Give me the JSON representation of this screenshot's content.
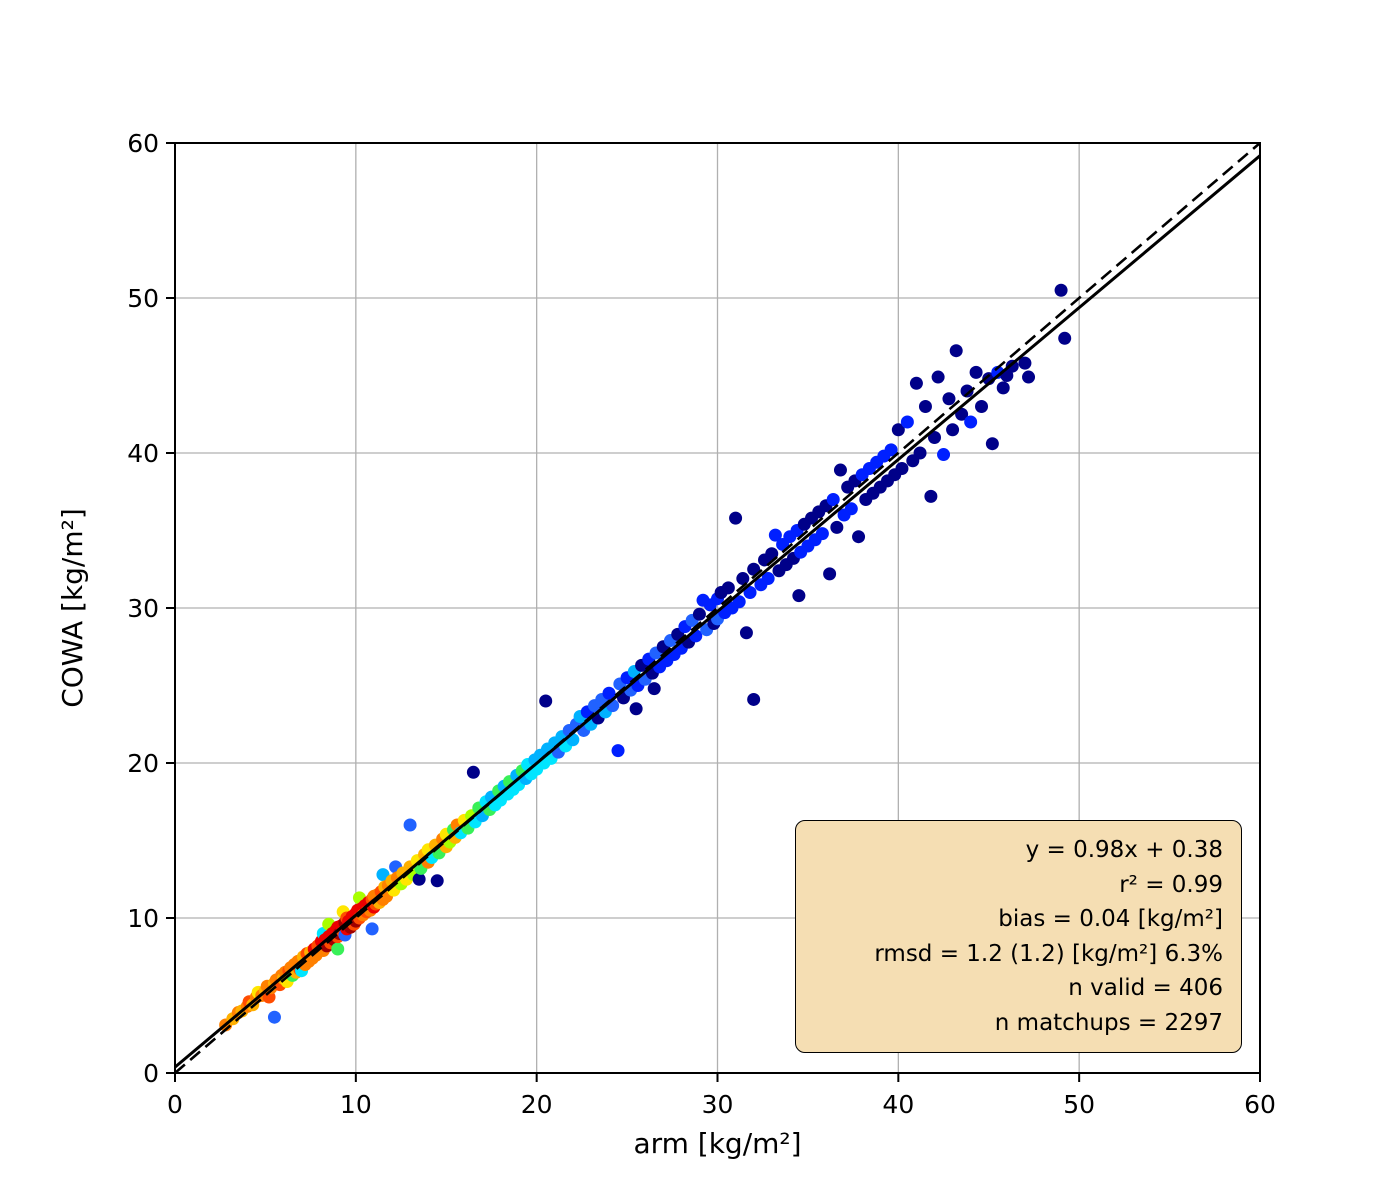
{
  "figure": {
    "background": "#ffffff",
    "stats_box": {
      "bg_color": "#f5deb3",
      "border_color": "#000000",
      "lines": [
        "y = 0.98x + 0.38",
        "r² = 0.99",
        "bias = 0.04 [kg/m²]",
        "rmsd = 1.2 (1.2) [kg/m²] 6.3%",
        "n valid = 406",
        "n matchups = 2297"
      ]
    }
  },
  "chart_data": {
    "type": "scatter",
    "title": "",
    "xlabel": "arm [kg/m²]",
    "ylabel": "COWA [kg/m²]",
    "xlim": [
      0,
      60
    ],
    "ylim": [
      0,
      60
    ],
    "xticks": [
      0,
      10,
      20,
      30,
      40,
      50,
      60
    ],
    "yticks": [
      0,
      10,
      20,
      30,
      40,
      50,
      60
    ],
    "grid": true,
    "grid_color": "#b0b0b0",
    "axis_color": "#000000",
    "identity_line": {
      "x0": 0,
      "y0": 0,
      "x1": 60,
      "y1": 60,
      "style": "dashed",
      "color": "#000000"
    },
    "fit_line": {
      "slope": 0.98,
      "intercept": 0.38,
      "style": "solid",
      "color": "#000000"
    },
    "marker_radius": 6.5,
    "palette": [
      "#000089",
      "#0020ff",
      "#2162ff",
      "#00b2ff",
      "#00e5ff",
      "#38f058",
      "#a8ff00",
      "#ffe600",
      "#ffb000",
      "#ff8000",
      "#ff4c00",
      "#eb0000",
      "#9f0000"
    ],
    "points": [
      [
        2.8,
        3.1,
        9
      ],
      [
        3.2,
        3.5,
        8
      ],
      [
        3.5,
        3.9,
        9
      ],
      [
        3.7,
        4.0,
        8
      ],
      [
        4.0,
        4.3,
        9
      ],
      [
        4.1,
        4.6,
        10
      ],
      [
        4.3,
        4.4,
        8
      ],
      [
        4.5,
        4.9,
        9
      ],
      [
        4.6,
        5.2,
        7
      ],
      [
        4.8,
        5.0,
        9
      ],
      [
        5.0,
        5.3,
        8
      ],
      [
        5.1,
        5.6,
        9
      ],
      [
        5.2,
        4.9,
        10
      ],
      [
        5.3,
        5.5,
        9
      ],
      [
        5.5,
        3.6,
        2
      ],
      [
        5.5,
        5.8,
        8
      ],
      [
        5.6,
        6.0,
        9
      ],
      [
        5.8,
        5.7,
        10
      ],
      [
        5.9,
        6.3,
        9
      ],
      [
        6.0,
        6.1,
        8
      ],
      [
        6.1,
        6.5,
        9
      ],
      [
        6.2,
        5.9,
        7
      ],
      [
        6.3,
        6.6,
        10
      ],
      [
        6.4,
        6.8,
        9
      ],
      [
        6.5,
        6.3,
        5
      ],
      [
        6.6,
        7.0,
        9
      ],
      [
        6.7,
        6.5,
        8
      ],
      [
        6.8,
        7.2,
        9
      ],
      [
        6.9,
        6.7,
        10
      ],
      [
        7.0,
        7.3,
        9
      ],
      [
        7.0,
        6.6,
        4
      ],
      [
        7.1,
        7.5,
        8
      ],
      [
        7.2,
        7.0,
        9
      ],
      [
        7.3,
        7.7,
        10
      ],
      [
        7.4,
        7.2,
        9
      ],
      [
        7.5,
        7.8,
        8
      ],
      [
        7.6,
        7.4,
        9
      ],
      [
        7.7,
        8.0,
        11
      ],
      [
        7.8,
        7.6,
        9
      ],
      [
        7.9,
        8.2,
        10
      ],
      [
        8.0,
        8.3,
        10
      ],
      [
        8.1,
        8.5,
        11
      ],
      [
        8.2,
        7.9,
        9
      ],
      [
        8.2,
        9.0,
        4
      ],
      [
        8.3,
        8.6,
        11
      ],
      [
        8.4,
        8.2,
        12
      ],
      [
        8.5,
        8.8,
        11
      ],
      [
        8.5,
        9.6,
        6
      ],
      [
        8.6,
        8.4,
        10
      ],
      [
        8.7,
        9.0,
        11
      ],
      [
        8.8,
        8.6,
        12
      ],
      [
        8.9,
        9.2,
        11
      ],
      [
        9.0,
        8.0,
        5
      ],
      [
        9.0,
        8.8,
        10
      ],
      [
        9.0,
        9.4,
        11
      ],
      [
        9.1,
        9.0,
        12
      ],
      [
        9.2,
        9.5,
        11
      ],
      [
        9.3,
        9.1,
        10
      ],
      [
        9.3,
        10.4,
        7
      ],
      [
        9.4,
        8.9,
        2
      ],
      [
        9.4,
        9.7,
        12
      ],
      [
        9.5,
        9.3,
        11
      ],
      [
        9.5,
        10.0,
        10
      ],
      [
        9.6,
        9.8,
        11
      ],
      [
        9.7,
        9.4,
        12
      ],
      [
        9.8,
        10.1,
        11
      ],
      [
        9.9,
        9.6,
        10
      ],
      [
        10.0,
        9.8,
        12
      ],
      [
        10.0,
        10.3,
        11
      ],
      [
        10.1,
        10.5,
        11
      ],
      [
        10.2,
        10.0,
        10
      ],
      [
        10.2,
        11.3,
        6
      ],
      [
        10.3,
        10.6,
        11
      ],
      [
        10.4,
        10.2,
        9
      ],
      [
        10.5,
        10.8,
        11
      ],
      [
        10.6,
        10.4,
        10
      ],
      [
        10.7,
        11.0,
        11
      ],
      [
        10.8,
        10.5,
        9
      ],
      [
        10.9,
        9.3,
        2
      ],
      [
        10.9,
        11.2,
        10
      ],
      [
        11.0,
        10.7,
        11
      ],
      [
        11.0,
        11.4,
        9
      ],
      [
        11.1,
        10.9,
        10
      ],
      [
        11.2,
        11.5,
        9
      ],
      [
        11.3,
        11.0,
        8
      ],
      [
        11.4,
        11.7,
        10
      ],
      [
        11.5,
        11.2,
        9
      ],
      [
        11.5,
        12.8,
        3
      ],
      [
        11.6,
        12.0,
        8
      ],
      [
        11.7,
        11.4,
        9
      ],
      [
        11.8,
        12.1,
        9
      ],
      [
        12.0,
        12.4,
        8
      ],
      [
        12.1,
        11.8,
        7
      ],
      [
        12.2,
        13.3,
        2
      ],
      [
        12.3,
        12.6,
        9
      ],
      [
        12.5,
        12.2,
        6
      ],
      [
        12.6,
        12.9,
        8
      ],
      [
        12.8,
        12.5,
        7
      ],
      [
        13.0,
        13.3,
        8
      ],
      [
        13.0,
        16.0,
        2
      ],
      [
        13.2,
        12.8,
        6
      ],
      [
        13.4,
        13.7,
        7
      ],
      [
        13.5,
        12.5,
        0
      ],
      [
        13.6,
        13.2,
        5
      ],
      [
        13.8,
        14.1,
        8
      ],
      [
        14.0,
        13.6,
        9
      ],
      [
        14.0,
        14.4,
        7
      ],
      [
        14.2,
        13.9,
        4
      ],
      [
        14.4,
        14.7,
        8
      ],
      [
        14.5,
        12.4,
        0
      ],
      [
        14.6,
        14.2,
        5
      ],
      [
        14.8,
        15.1,
        9
      ],
      [
        15.0,
        14.6,
        8
      ],
      [
        15.0,
        15.4,
        7
      ],
      [
        15.2,
        14.9,
        6
      ],
      [
        15.4,
        15.7,
        5
      ],
      [
        15.5,
        15.2,
        8
      ],
      [
        15.6,
        16.0,
        9
      ],
      [
        15.8,
        15.5,
        4
      ],
      [
        16.0,
        16.3,
        7
      ],
      [
        16.2,
        15.8,
        5
      ],
      [
        16.4,
        16.6,
        6
      ],
      [
        16.5,
        19.4,
        0
      ],
      [
        16.6,
        16.2,
        4
      ],
      [
        16.8,
        17.1,
        5
      ],
      [
        17.0,
        16.6,
        3
      ],
      [
        17.2,
        17.5,
        4
      ],
      [
        17.4,
        17.0,
        5
      ],
      [
        17.5,
        17.8,
        3
      ],
      [
        17.7,
        17.3,
        4
      ],
      [
        17.9,
        18.2,
        5
      ],
      [
        18.0,
        17.6,
        4
      ],
      [
        18.2,
        18.5,
        3
      ],
      [
        18.4,
        18.0,
        4
      ],
      [
        18.5,
        18.8,
        5
      ],
      [
        18.7,
        18.3,
        4
      ],
      [
        18.9,
        19.2,
        3
      ],
      [
        19.0,
        18.6,
        4
      ],
      [
        19.2,
        19.5,
        5
      ],
      [
        19.4,
        19.0,
        3
      ],
      [
        19.5,
        19.9,
        4
      ],
      [
        19.7,
        19.3,
        4
      ],
      [
        19.9,
        20.2,
        3
      ],
      [
        20.0,
        19.6,
        4
      ],
      [
        20.2,
        20.5,
        3
      ],
      [
        20.4,
        20.0,
        4
      ],
      [
        20.5,
        24.0,
        0
      ],
      [
        20.6,
        20.9,
        3
      ],
      [
        20.8,
        20.3,
        4
      ],
      [
        21.0,
        21.3,
        3
      ],
      [
        21.2,
        20.7,
        2
      ],
      [
        21.4,
        21.7,
        3
      ],
      [
        21.6,
        21.1,
        4
      ],
      [
        21.8,
        22.1,
        2
      ],
      [
        22.0,
        21.5,
        3
      ],
      [
        22.2,
        22.5,
        2
      ],
      [
        22.4,
        23.0,
        3
      ],
      [
        22.6,
        22.1,
        2
      ],
      [
        22.8,
        23.3,
        1
      ],
      [
        23.0,
        22.5,
        3
      ],
      [
        23.2,
        23.7,
        2
      ],
      [
        23.4,
        22.9,
        0
      ],
      [
        23.6,
        24.1,
        2
      ],
      [
        23.8,
        23.3,
        3
      ],
      [
        24.0,
        24.5,
        1
      ],
      [
        24.2,
        23.7,
        2
      ],
      [
        24.5,
        20.8,
        1
      ],
      [
        24.6,
        25.1,
        2
      ],
      [
        24.8,
        24.2,
        0
      ],
      [
        25.0,
        25.5,
        1
      ],
      [
        25.2,
        24.7,
        2
      ],
      [
        25.4,
        25.9,
        3
      ],
      [
        25.5,
        23.5,
        0
      ],
      [
        25.6,
        25.0,
        1
      ],
      [
        25.8,
        26.3,
        0
      ],
      [
        26.0,
        25.4,
        2
      ],
      [
        26.2,
        26.7,
        1
      ],
      [
        26.4,
        25.8,
        0
      ],
      [
        26.5,
        24.8,
        0
      ],
      [
        26.6,
        27.1,
        2
      ],
      [
        26.8,
        26.2,
        1
      ],
      [
        27.0,
        27.5,
        0
      ],
      [
        27.2,
        26.6,
        1
      ],
      [
        27.4,
        27.9,
        2
      ],
      [
        27.6,
        27.0,
        1
      ],
      [
        27.8,
        28.3,
        0
      ],
      [
        28.0,
        27.4,
        1
      ],
      [
        28.2,
        28.8,
        1
      ],
      [
        28.4,
        27.8,
        0
      ],
      [
        28.6,
        29.2,
        2
      ],
      [
        28.8,
        28.2,
        1
      ],
      [
        29.0,
        29.6,
        0
      ],
      [
        29.2,
        30.5,
        1
      ],
      [
        29.4,
        28.6,
        2
      ],
      [
        29.6,
        30.2,
        1
      ],
      [
        29.8,
        29.0,
        0
      ],
      [
        30.0,
        30.6,
        1
      ],
      [
        30.0,
        29.3,
        2
      ],
      [
        30.2,
        31.0,
        0
      ],
      [
        30.4,
        29.7,
        1
      ],
      [
        30.6,
        31.3,
        0
      ],
      [
        30.8,
        30.0,
        1
      ],
      [
        31.0,
        35.8,
        0
      ],
      [
        31.2,
        30.4,
        1
      ],
      [
        31.4,
        31.9,
        0
      ],
      [
        31.6,
        28.4,
        0
      ],
      [
        31.8,
        31.0,
        1
      ],
      [
        32.0,
        32.5,
        0
      ],
      [
        32.0,
        24.1,
        0
      ],
      [
        32.4,
        31.5,
        1
      ],
      [
        32.6,
        33.1,
        0
      ],
      [
        32.8,
        31.9,
        1
      ],
      [
        33.0,
        33.5,
        0
      ],
      [
        33.2,
        34.7,
        1
      ],
      [
        33.4,
        32.4,
        0
      ],
      [
        33.6,
        34.1,
        1
      ],
      [
        33.8,
        32.8,
        0
      ],
      [
        34.0,
        34.6,
        1
      ],
      [
        34.2,
        33.2,
        0
      ],
      [
        34.4,
        35.0,
        1
      ],
      [
        34.5,
        30.8,
        0
      ],
      [
        34.6,
        33.6,
        1
      ],
      [
        34.8,
        35.4,
        0
      ],
      [
        35.0,
        34.0,
        1
      ],
      [
        35.2,
        35.8,
        0
      ],
      [
        35.4,
        34.4,
        1
      ],
      [
        35.6,
        36.2,
        0
      ],
      [
        35.8,
        34.8,
        1
      ],
      [
        36.0,
        36.6,
        0
      ],
      [
        36.2,
        32.2,
        0
      ],
      [
        36.4,
        37.0,
        1
      ],
      [
        36.6,
        35.2,
        0
      ],
      [
        36.8,
        38.9,
        0
      ],
      [
        37.0,
        36.0,
        1
      ],
      [
        37.2,
        37.8,
        0
      ],
      [
        37.4,
        36.4,
        1
      ],
      [
        37.6,
        38.2,
        0
      ],
      [
        37.8,
        34.6,
        0
      ],
      [
        38.0,
        38.6,
        1
      ],
      [
        38.2,
        37.0,
        0
      ],
      [
        38.4,
        39.0,
        1
      ],
      [
        38.6,
        37.4,
        0
      ],
      [
        38.8,
        39.4,
        1
      ],
      [
        39.0,
        37.8,
        0
      ],
      [
        39.2,
        39.8,
        1
      ],
      [
        39.4,
        38.2,
        0
      ],
      [
        39.6,
        40.2,
        1
      ],
      [
        39.8,
        38.6,
        0
      ],
      [
        40.0,
        41.5,
        0
      ],
      [
        40.2,
        39.0,
        0
      ],
      [
        40.5,
        42.0,
        1
      ],
      [
        40.8,
        39.5,
        0
      ],
      [
        41.0,
        44.5,
        0
      ],
      [
        41.2,
        40.0,
        0
      ],
      [
        41.5,
        43.0,
        0
      ],
      [
        41.8,
        37.2,
        0
      ],
      [
        42.0,
        41.0,
        0
      ],
      [
        42.2,
        44.9,
        0
      ],
      [
        42.5,
        39.9,
        1
      ],
      [
        42.8,
        43.5,
        0
      ],
      [
        43.0,
        41.5,
        0
      ],
      [
        43.2,
        46.6,
        0
      ],
      [
        43.5,
        42.5,
        0
      ],
      [
        43.8,
        44.0,
        0
      ],
      [
        44.0,
        42.0,
        1
      ],
      [
        44.3,
        45.2,
        0
      ],
      [
        44.6,
        43.0,
        0
      ],
      [
        45.0,
        44.8,
        0
      ],
      [
        45.2,
        40.6,
        0
      ],
      [
        45.5,
        45.2,
        1
      ],
      [
        45.8,
        44.2,
        0
      ],
      [
        46.0,
        45.0,
        0
      ],
      [
        46.3,
        45.6,
        0
      ],
      [
        47.0,
        45.8,
        0
      ],
      [
        47.2,
        44.9,
        0
      ],
      [
        49.0,
        50.5,
        0
      ],
      [
        49.2,
        47.4,
        0
      ]
    ]
  }
}
